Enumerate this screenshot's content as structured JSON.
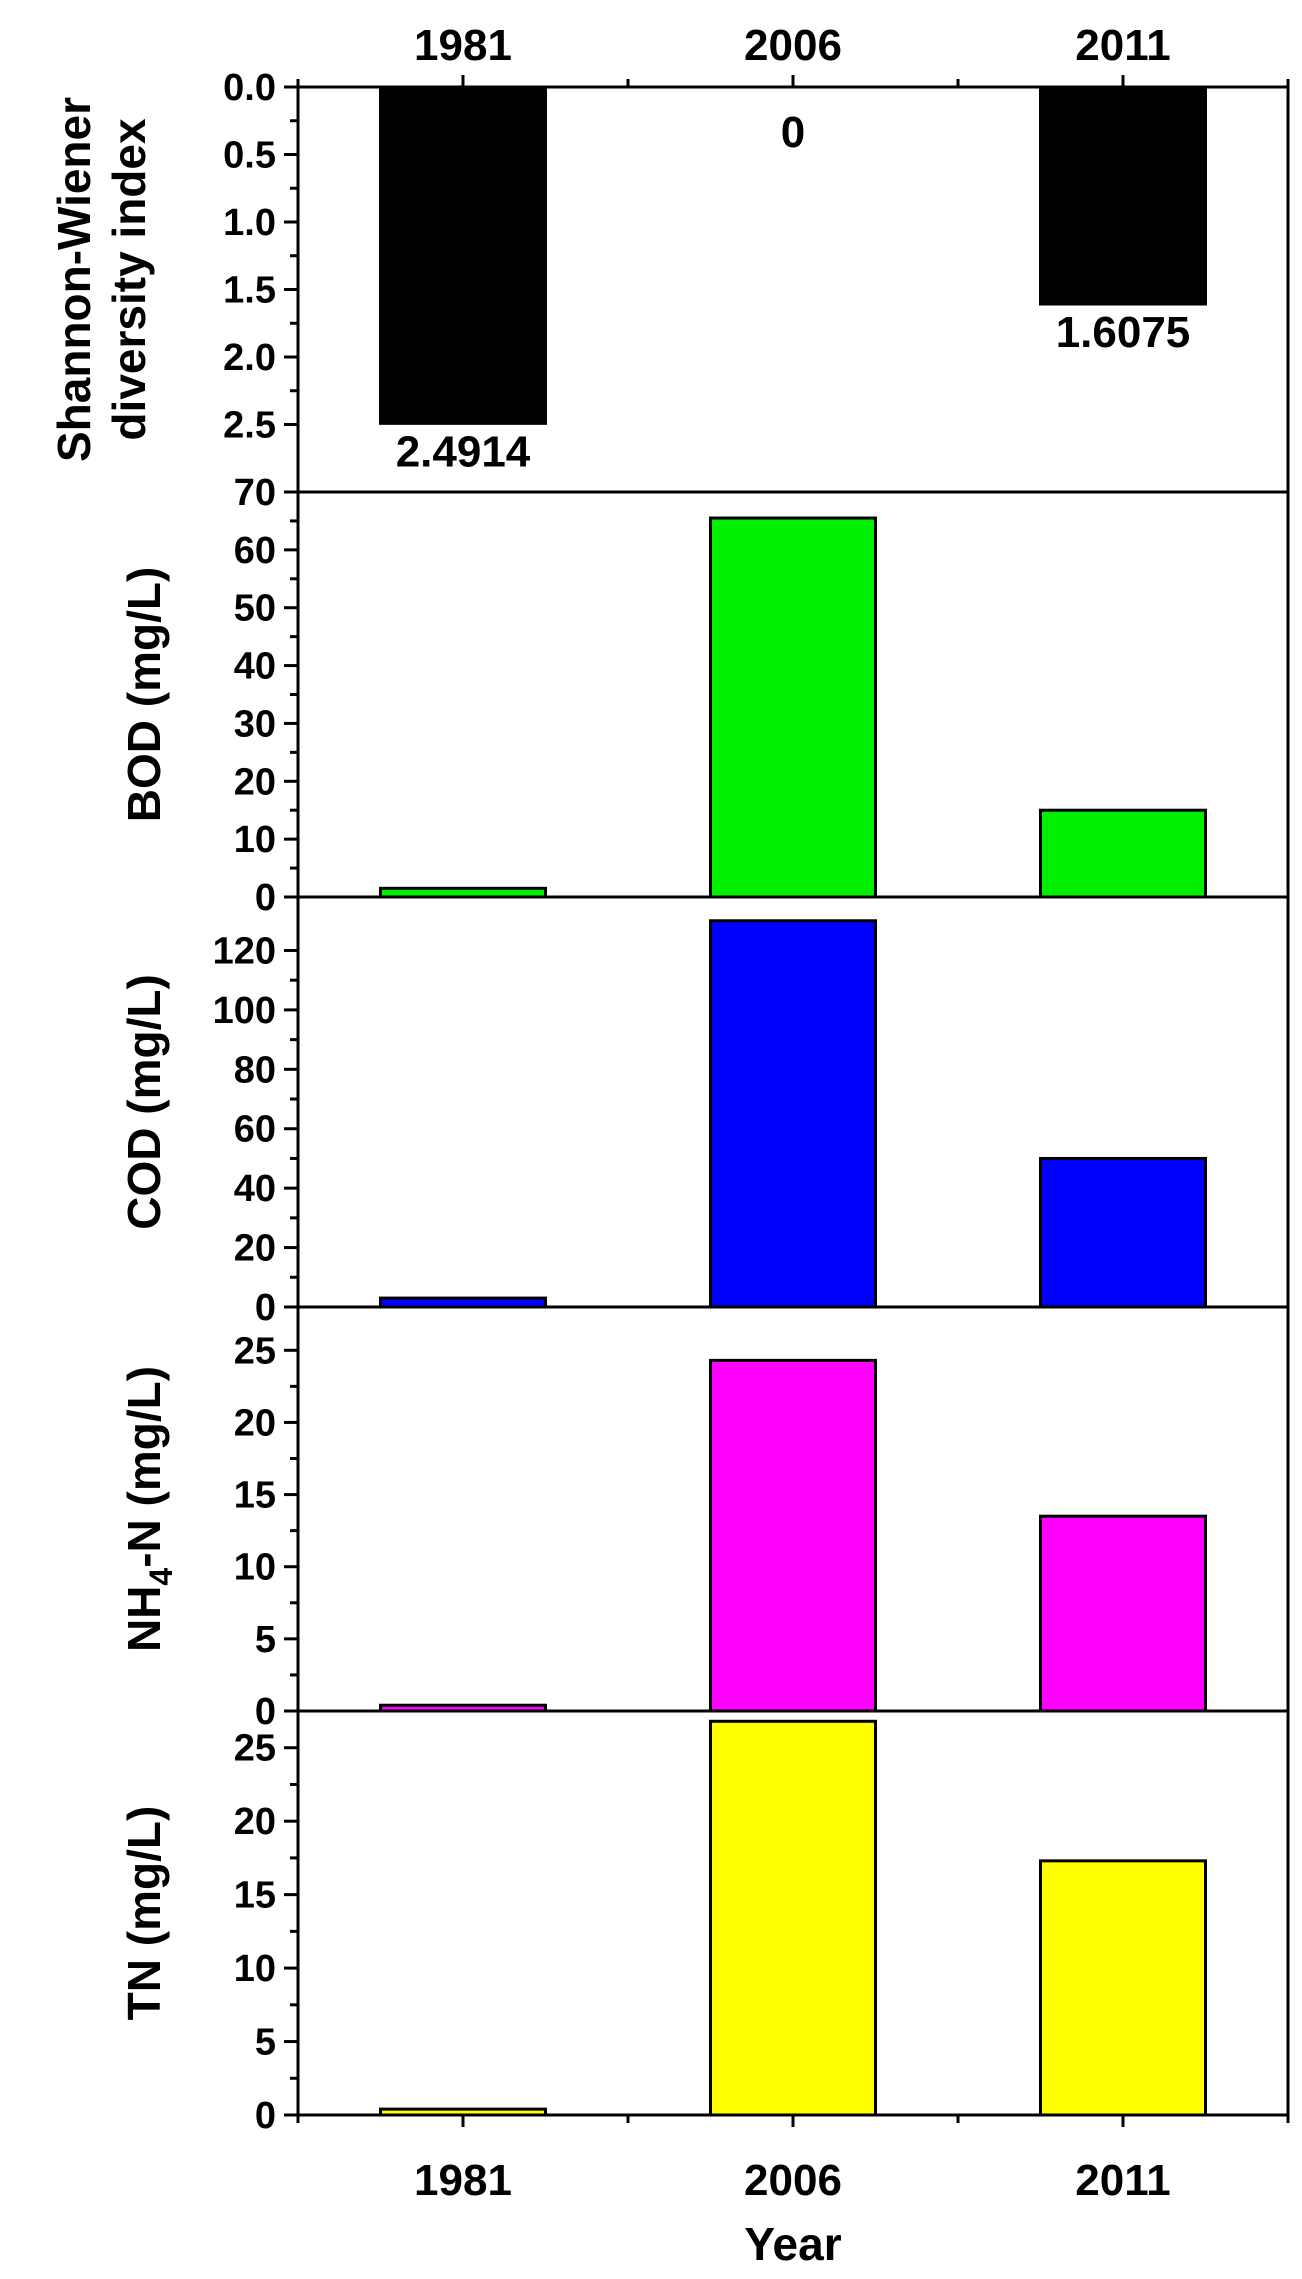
{
  "chart_data": {
    "type": "bar",
    "xlabel": "Year",
    "categories": [
      "1981",
      "2006",
      "2011"
    ],
    "panels": [
      {
        "key": "shannon",
        "ylabel_lines": [
          "Shannon-Wiener",
          "diversity index"
        ],
        "values": [
          2.4914,
          0,
          1.6075
        ],
        "data_labels": [
          "2.4914",
          "0",
          "1.6075"
        ],
        "ylim": [
          0,
          3.0
        ],
        "inverted": true,
        "ticks": [
          0.0,
          0.5,
          1.0,
          1.5,
          2.0,
          2.5
        ],
        "tick_labels": [
          "0.0",
          "0.5",
          "1.0",
          "1.5",
          "2.0",
          "2.5"
        ],
        "color": "#000000"
      },
      {
        "key": "bod",
        "ylabel_lines": [
          "BOD (mg/L)"
        ],
        "values": [
          1.5,
          65.5,
          15
        ],
        "ylim": [
          0,
          70
        ],
        "inverted": false,
        "ticks": [
          0,
          10,
          20,
          30,
          40,
          50,
          60,
          70
        ],
        "tick_labels": [
          "0",
          "10",
          "20",
          "30",
          "40",
          "50",
          "60",
          "70"
        ],
        "color": "#00ee00"
      },
      {
        "key": "cod",
        "ylabel_lines": [
          "COD (mg/L)"
        ],
        "values": [
          3,
          130,
          50
        ],
        "ylim": [
          0,
          138
        ],
        "inverted": false,
        "ticks": [
          0,
          20,
          40,
          60,
          80,
          100,
          120
        ],
        "tick_labels": [
          "0",
          "20",
          "40",
          "60",
          "80",
          "100",
          "120"
        ],
        "color": "#0000ff"
      },
      {
        "key": "nh4n",
        "ylabel_lines": [
          "NH4-N (mg/L)"
        ],
        "ylabel_parts": [
          "NH",
          "4",
          "-N (mg/L)"
        ],
        "values": [
          0.4,
          24.3,
          13.5
        ],
        "ylim": [
          0,
          28
        ],
        "inverted": false,
        "ticks": [
          0,
          5,
          10,
          15,
          20,
          25
        ],
        "tick_labels": [
          "0",
          "5",
          "10",
          "15",
          "20",
          "25"
        ],
        "color": "#ff00ff"
      },
      {
        "key": "tn",
        "ylabel_lines": [
          "TN (mg/L)"
        ],
        "values": [
          0.4,
          26.8,
          17.3
        ],
        "ylim": [
          0,
          27.5
        ],
        "inverted": false,
        "ticks": [
          0,
          5,
          10,
          15,
          20,
          25
        ],
        "tick_labels": [
          "0",
          "5",
          "10",
          "15",
          "20",
          "25"
        ],
        "color": "#ffff00"
      }
    ]
  }
}
